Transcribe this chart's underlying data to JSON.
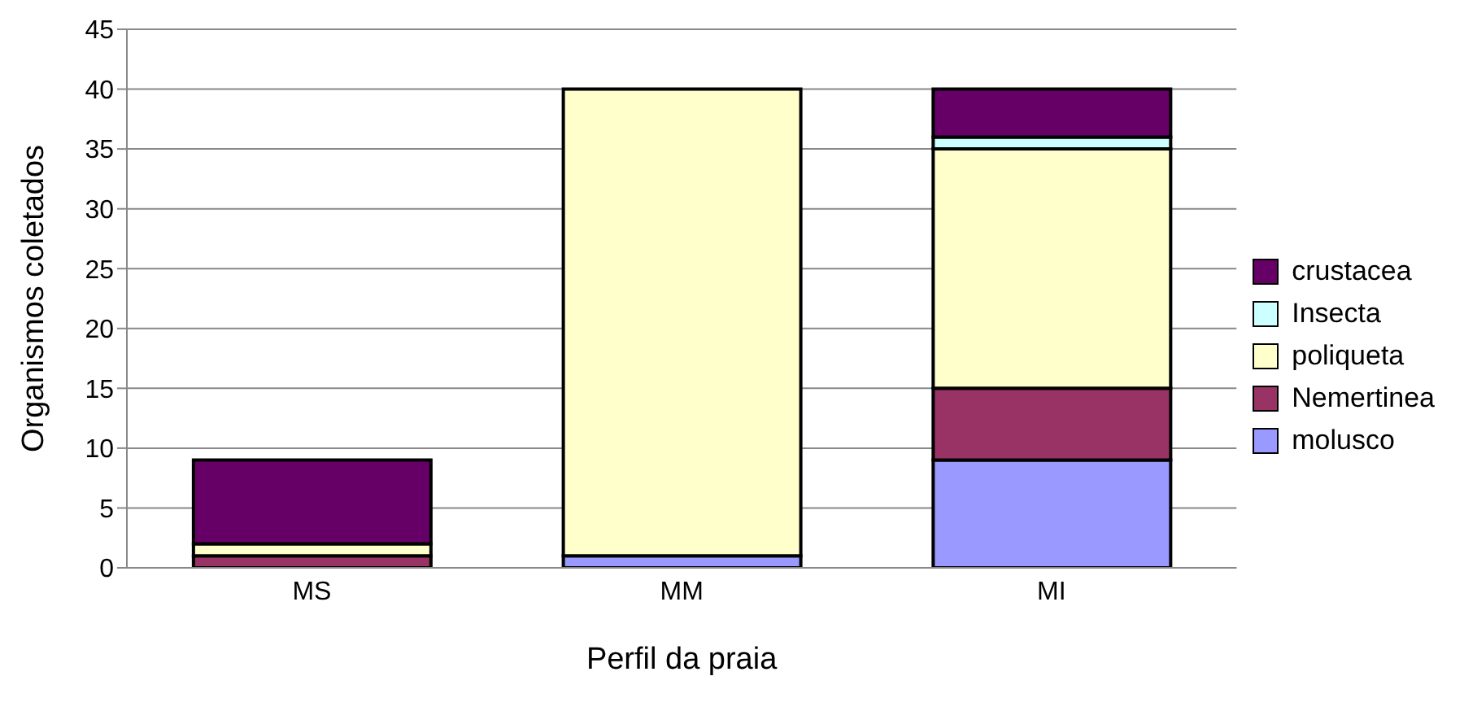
{
  "chart_data": {
    "type": "bar",
    "stacked": true,
    "xlabel": "Perfil da praia",
    "ylabel": "Organismos coletados",
    "categories": [
      "MS",
      "MM",
      "MI"
    ],
    "series": [
      {
        "name": "molusco",
        "color": "#9999ff",
        "values": [
          0,
          1,
          9
        ]
      },
      {
        "name": "Nemertinea",
        "color": "#993366",
        "values": [
          1,
          0,
          6
        ]
      },
      {
        "name": "poliqueta",
        "color": "#ffffcc",
        "values": [
          1,
          39,
          20
        ]
      },
      {
        "name": "Insecta",
        "color": "#ccffff",
        "values": [
          0,
          0,
          1
        ]
      },
      {
        "name": "crustacea",
        "color": "#660066",
        "values": [
          7,
          0,
          4
        ]
      }
    ],
    "ylim": [
      0,
      45
    ],
    "yticks": [
      0,
      5,
      10,
      15,
      20,
      25,
      30,
      35,
      40,
      45
    ],
    "grid": "y",
    "legend": "right"
  }
}
